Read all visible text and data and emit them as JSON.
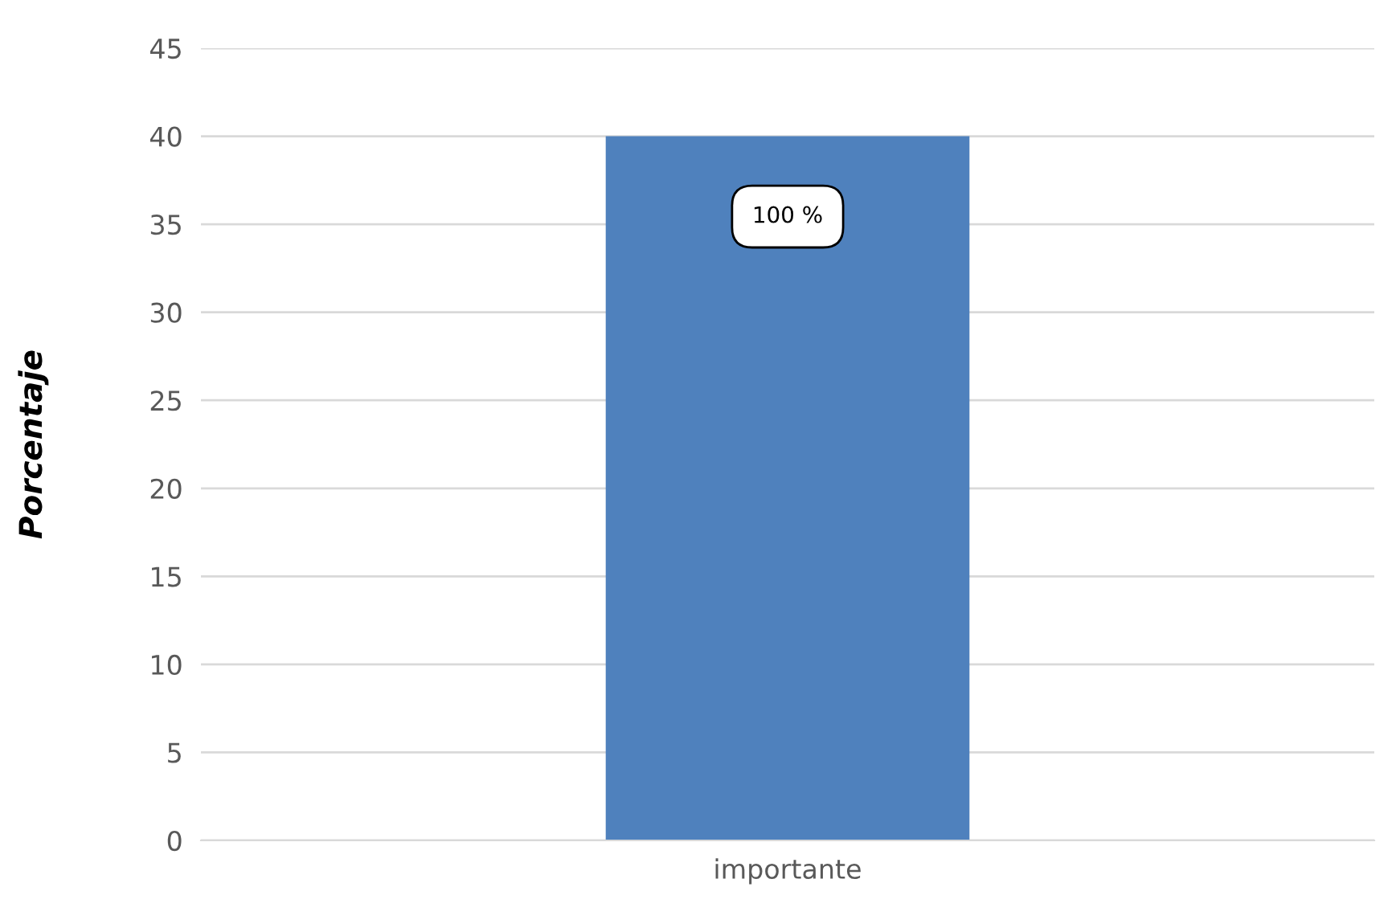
{
  "chart_data": {
    "type": "bar",
    "ylabel": "Porcentaje",
    "categories": [
      "importante"
    ],
    "values": [
      40
    ],
    "color": "#4f81bd",
    "annotations": [
      "100 %"
    ],
    "legend": false,
    "ylim": [
      0,
      45
    ],
    "yticks": [
      0,
      5,
      10,
      15,
      20,
      25,
      30,
      35,
      40,
      45
    ],
    "grid": "y"
  }
}
